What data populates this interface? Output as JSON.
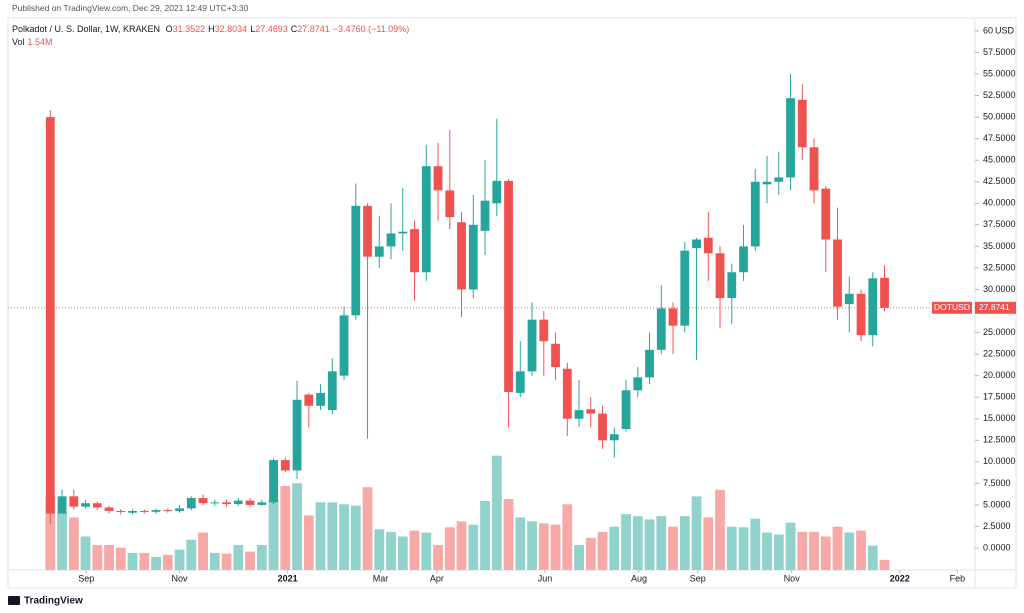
{
  "published": "Published on TradingView.com, Dec 29, 2021 12:49 UTC+3:30",
  "brand": "TradingView",
  "chart_data": {
    "type": "candlestick",
    "symbol": "Polkadot / U. S. Dollar, 1W, KRAKEN",
    "ohlc_keys": [
      "O",
      "H",
      "L",
      "C"
    ],
    "change_label": "−3.4760 (−11.09%)",
    "volume_name": "Vol",
    "volume_value_label": "1.54M",
    "last_name": "DOTUSD",
    "currency": "USD",
    "up_color": "#26a69a",
    "down_color": "#ef5350",
    "volume_up_color": "#92d2cc",
    "volume_down_color": "#f7a9a7",
    "x": [
      0,
      1,
      2,
      3,
      4,
      5,
      6,
      7,
      8,
      9,
      10,
      11,
      12,
      13,
      14,
      15,
      16,
      17,
      18,
      19,
      20,
      21,
      22,
      23,
      24,
      25,
      26,
      27,
      28,
      29,
      30,
      31,
      32,
      33,
      34,
      35,
      36,
      37,
      38,
      39,
      40,
      41,
      42,
      43,
      44,
      45,
      46,
      47,
      48,
      49,
      50,
      51,
      52,
      53,
      54,
      55,
      56,
      57,
      58,
      59,
      60,
      61,
      62,
      63,
      64,
      65,
      66,
      67,
      68,
      69,
      70,
      71
    ],
    "open": [
      50,
      4,
      6,
      4.8,
      5.2,
      4.7,
      4.3,
      4.1,
      4.3,
      4.2,
      4.4,
      4.3,
      4.6,
      5.8,
      5.2,
      5.3,
      5.1,
      5.5,
      5,
      5.3,
      10.2,
      9,
      17.8,
      16.5,
      16,
      20,
      27,
      39.7,
      33.8,
      35,
      36.5,
      37,
      32,
      44.3,
      41.5,
      37.8,
      30,
      36.8,
      40,
      42.6,
      18,
      20.5,
      26.5,
      23.7,
      20.8,
      15,
      16.1,
      15.6,
      12.5,
      13.8,
      18.3,
      19.8,
      23,
      27.8,
      25.8,
      34.8,
      36,
      34.2,
      29,
      32,
      35,
      42.2,
      42.5,
      43,
      52,
      46.5,
      41.7,
      35.8,
      28.3,
      29.5,
      24.7,
      31.3522
    ],
    "high": [
      50.8,
      6.8,
      6.8,
      5.6,
      5.4,
      4.9,
      4.5,
      4.5,
      4.5,
      4.6,
      4.6,
      5,
      6,
      6.2,
      5.6,
      5.6,
      5.8,
      5.8,
      5.6,
      10.4,
      10.5,
      19.4,
      18,
      19,
      22,
      28,
      42.3,
      40,
      38.5,
      40,
      41.8,
      38,
      46.8,
      47,
      48.5,
      39,
      41,
      45,
      49.8,
      42.8,
      24,
      28.5,
      27.5,
      25,
      21.5,
      19.5,
      17.5,
      16.5,
      14,
      19.5,
      21,
      25,
      30.5,
      28.5,
      35.5,
      36,
      39,
      35,
      33,
      37.5,
      44,
      45.5,
      46,
      55,
      53.8,
      47.5,
      42,
      39.5,
      31.5,
      30,
      32,
      32.8034
    ],
    "low": [
      2.8,
      4,
      4.5,
      4.6,
      4.4,
      4,
      3.9,
      3.9,
      4,
      4,
      4.1,
      4.1,
      4.4,
      5,
      4.9,
      4.8,
      4.9,
      4.8,
      4.9,
      5.1,
      8.8,
      8,
      14,
      16,
      15.5,
      19.5,
      26.5,
      12.7,
      32.5,
      33.5,
      34.5,
      28.7,
      31,
      38,
      37,
      26.8,
      29,
      34,
      38.5,
      14,
      17.5,
      20,
      20,
      19.5,
      13,
      14,
      14,
      11.5,
      10.5,
      13.5,
      17.5,
      19,
      22.5,
      22.5,
      25,
      21.8,
      31,
      25.5,
      26,
      31,
      34.5,
      40,
      41,
      41.5,
      45,
      40,
      32,
      26.5,
      25,
      24,
      23.4,
      27.4693
    ],
    "close": [
      4,
      6,
      4.8,
      5.2,
      4.7,
      4.3,
      4.2,
      4.3,
      4.2,
      4.4,
      4.3,
      4.6,
      5.8,
      5.2,
      5.3,
      5.1,
      5.5,
      5,
      5.3,
      10.2,
      9,
      17.2,
      16.5,
      18,
      20.5,
      27,
      39.7,
      33.8,
      35,
      36.5,
      36.7,
      32,
      44.3,
      41.5,
      38.4,
      30,
      37.5,
      40.3,
      42.6,
      18.1,
      20.5,
      26.5,
      24,
      21,
      15,
      16,
      15.6,
      12.5,
      13.2,
      18.3,
      19.8,
      23,
      27.8,
      25.8,
      34.5,
      35.8,
      34.2,
      29,
      32,
      35,
      42.5,
      42.5,
      43,
      52.2,
      46.5,
      41.5,
      35.8,
      28,
      29.5,
      24.7,
      31.3,
      27.8741
    ],
    "volume": [
      11.2,
      8.8,
      8,
      5.1,
      3.8,
      3.8,
      3.4,
      2.6,
      2.6,
      2,
      2.3,
      3.1,
      4.6,
      5.7,
      2.6,
      2.5,
      3.8,
      2.8,
      3.8,
      10.8,
      12.8,
      13.2,
      8.3,
      10.3,
      10.3,
      10,
      9.8,
      12.6,
      6.2,
      5.8,
      5.1,
      6,
      5.7,
      3.8,
      6.5,
      7.4,
      6.9,
      10.5,
      17.4,
      10.8,
      8,
      7.4,
      7.1,
      6.9,
      10,
      3.8,
      4.9,
      5.8,
      6.6,
      8.5,
      8.2,
      7.7,
      8.2,
      6.6,
      8.2,
      11.2,
      8,
      12.2,
      6.6,
      6.5,
      7.8,
      5.7,
      5.4,
      7.2,
      5.8,
      5.8,
      5.1,
      6.6,
      5.7,
      6,
      3.7,
      1.54
    ],
    "xlim": [
      -3.6,
      78.7
    ],
    "xticks": [
      {
        "value": 3.06,
        "label": "Sep"
      },
      {
        "value": 11,
        "label": "Nov"
      },
      {
        "value": 20.2,
        "label": "2021"
      },
      {
        "value": 28.1,
        "label": "Mar"
      },
      {
        "value": 32.9,
        "label": "Apr"
      },
      {
        "value": 42.1,
        "label": "Jun"
      },
      {
        "value": 50.1,
        "label": "Aug"
      },
      {
        "value": 55.1,
        "label": "Sep"
      },
      {
        "value": 63.1,
        "label": "Nov"
      },
      {
        "value": 72.3,
        "label": "2022"
      },
      {
        "value": 77.2,
        "label": "Feb"
      }
    ],
    "ylim": [
      -2.55,
      61.5
    ],
    "y2lim": [
      0,
      84
    ],
    "yticks": [
      {
        "value": 0,
        "label": "0.0000"
      },
      {
        "value": 2.5,
        "label": "2.5000"
      },
      {
        "value": 5,
        "label": "5.0000"
      },
      {
        "value": 7.5,
        "label": "7.5000"
      },
      {
        "value": 10,
        "label": "10.0000"
      },
      {
        "value": 12.5,
        "label": "12.5000"
      },
      {
        "value": 15,
        "label": "15.0000"
      },
      {
        "value": 17.5,
        "label": "17.5000"
      },
      {
        "value": 20,
        "label": "20.0000"
      },
      {
        "value": 22.5,
        "label": "22.5000"
      },
      {
        "value": 25,
        "label": "25.0000"
      },
      {
        "value": 27.5,
        "label": "27.5000"
      },
      {
        "value": 30,
        "label": "30.0000"
      },
      {
        "value": 32.5,
        "label": "32.5000"
      },
      {
        "value": 35,
        "label": "35.0000"
      },
      {
        "value": 37.5,
        "label": "37.5000"
      },
      {
        "value": 40,
        "label": "40.0000"
      },
      {
        "value": 42.5,
        "label": "42.5000"
      },
      {
        "value": 45,
        "label": "45.0000"
      },
      {
        "value": 47.5,
        "label": "47.5000"
      },
      {
        "value": 50,
        "label": "50.0000"
      },
      {
        "value": 52.5,
        "label": "52.5000"
      },
      {
        "value": 55,
        "label": "55.0000"
      },
      {
        "value": 57.5,
        "label": "57.5000"
      },
      60
    ]
  }
}
